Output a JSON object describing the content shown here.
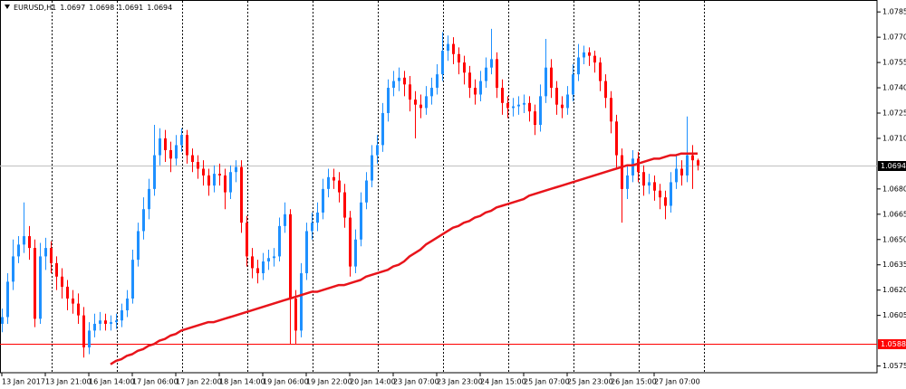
{
  "chart_data": {
    "type": "candlestick",
    "title": "EURUSD,H1",
    "categories": [
      "13 Jan 2017",
      null,
      null,
      null,
      null,
      null,
      null,
      null,
      "13 Jan 21:00",
      null,
      null,
      null,
      null,
      null,
      null,
      null,
      "16 Jan 14:00",
      null,
      null,
      null,
      null,
      null,
      null,
      null,
      "17 Jan 06:00",
      null,
      null,
      null,
      null,
      null,
      null,
      null,
      "17 Jan 22:00",
      null,
      null,
      null,
      null,
      null,
      null,
      null,
      "18 Jan 14:00",
      null,
      null,
      null,
      null,
      null,
      null,
      null,
      "19 Jan 06:00",
      null,
      null,
      null,
      null,
      null,
      null,
      null,
      "19 Jan 22:00",
      null,
      null,
      null,
      null,
      null,
      null,
      null,
      "20 Jan 14:00",
      null,
      null,
      null,
      null,
      null,
      null,
      null,
      "23 Jan 07:00",
      null,
      null,
      null,
      null,
      null,
      null,
      null,
      "23 Jan 23:00",
      null,
      null,
      null,
      null,
      null,
      null,
      null,
      "24 Jan 15:00",
      null,
      null,
      null,
      null,
      null,
      null,
      null,
      "25 Jan 07:00",
      null,
      null,
      null,
      null,
      null,
      null,
      null,
      "25 Jan 23:00",
      null,
      null,
      null,
      null,
      null,
      null,
      null,
      "26 Jan 15:00",
      null,
      null,
      null,
      null,
      null,
      null,
      null,
      "27 Jan 07:00",
      null,
      null,
      null,
      null,
      null,
      null,
      null,
      null
    ],
    "open": [
      1.06,
      1.0604,
      1.0625,
      1.064,
      1.0647,
      1.0652,
      1.0645,
      1.0603,
      1.064,
      1.0645,
      1.0636,
      1.0628,
      1.0622,
      1.0615,
      1.0612,
      1.0605,
      1.0586,
      1.0596,
      1.06,
      1.0602,
      1.06,
      1.0601,
      1.0602,
      1.0608,
      1.0615,
      1.0638,
      1.0655,
      1.0668,
      1.068,
      1.07,
      1.071,
      1.0703,
      1.0698,
      1.0706,
      1.0712,
      1.07,
      1.0696,
      1.0692,
      1.0688,
      1.0682,
      1.0689,
      1.0688,
      1.0678,
      1.069,
      1.0693,
      1.066,
      1.064,
      1.0633,
      1.063,
      1.0637,
      1.0639,
      1.064,
      1.0658,
      1.0665,
      1.0615,
      1.0596,
      1.063,
      1.0655,
      1.066,
      1.0666,
      1.068,
      1.0687,
      1.0685,
      1.0678,
      1.0663,
      1.0634,
      1.065,
      1.0672,
      1.0685,
      1.07,
      1.0706,
      1.0725,
      1.074,
      1.0744,
      1.0746,
      1.0742,
      1.0733,
      1.073,
      1.0728,
      1.0735,
      1.074,
      1.0748,
      1.0762,
      1.0766,
      1.076,
      1.0755,
      1.0749,
      1.074,
      1.0736,
      1.0744,
      1.0752,
      1.0757,
      1.074,
      1.0731,
      1.0728,
      1.0729,
      1.073,
      1.0731,
      1.0726,
      1.0718,
      1.0735,
      1.0752,
      1.074,
      1.073,
      1.0728,
      1.0736,
      1.0748,
      1.0758,
      1.0761,
      1.0759,
      1.0755,
      1.0744,
      1.0734,
      1.072,
      1.07,
      1.068,
      1.0688,
      1.0698,
      1.069,
      1.0682,
      1.0684,
      1.0679,
      1.0675,
      1.067,
      1.0684,
      1.0692,
      1.0688,
      1.07,
      1.0697
    ],
    "high": [
      1.0609,
      1.063,
      1.065,
      1.0652,
      1.0672,
      1.0658,
      1.065,
      1.0648,
      1.0651,
      1.0649,
      1.064,
      1.0633,
      1.0626,
      1.062,
      1.0618,
      1.061,
      1.0601,
      1.0606,
      1.0607,
      1.0606,
      1.0605,
      1.0606,
      1.0612,
      1.062,
      1.0644,
      1.066,
      1.0675,
      1.0686,
      1.0718,
      1.0716,
      1.0715,
      1.0708,
      1.0712,
      1.0716,
      1.0715,
      1.0704,
      1.07,
      1.0697,
      1.0692,
      1.0694,
      1.0695,
      1.0692,
      1.0694,
      1.0697,
      1.0697,
      1.0664,
      1.0645,
      1.0638,
      1.0642,
      1.0644,
      1.0645,
      1.0663,
      1.0672,
      1.0668,
      1.062,
      1.0636,
      1.066,
      1.0666,
      1.0672,
      1.0686,
      1.0692,
      1.0692,
      1.069,
      1.0683,
      1.0667,
      1.0656,
      1.0678,
      1.069,
      1.0706,
      1.0712,
      1.0731,
      1.0745,
      1.075,
      1.0752,
      1.075,
      1.0747,
      1.0738,
      1.0736,
      1.0741,
      1.0746,
      1.0754,
      1.0773,
      1.0771,
      1.077,
      1.0764,
      1.0759,
      1.0753,
      1.0745,
      1.075,
      1.0758,
      1.0775,
      1.0761,
      1.0745,
      1.0735,
      1.0734,
      1.0735,
      1.0736,
      1.0735,
      1.073,
      1.0742,
      1.0769,
      1.0757,
      1.0744,
      1.0735,
      1.0741,
      1.0754,
      1.0766,
      1.0765,
      1.0764,
      1.0762,
      1.0758,
      1.0748,
      1.0738,
      1.0724,
      1.0704,
      1.0694,
      1.0703,
      1.0702,
      1.0694,
      1.0689,
      1.0688,
      1.0683,
      1.0679,
      1.069,
      1.07,
      1.0697,
      1.0723,
      1.0706,
      1.0698
    ],
    "low": [
      1.0595,
      1.06,
      1.062,
      1.0636,
      1.0642,
      1.0638,
      1.0598,
      1.06,
      1.0632,
      1.063,
      1.062,
      1.0615,
      1.0608,
      1.0606,
      1.06,
      1.058,
      1.0582,
      1.0592,
      1.0596,
      1.0596,
      1.0596,
      1.0597,
      1.0598,
      1.0604,
      1.0612,
      1.0634,
      1.065,
      1.0662,
      1.0676,
      1.0694,
      1.0696,
      1.069,
      1.0694,
      1.0702,
      1.0695,
      1.069,
      1.0686,
      1.0682,
      1.0676,
      1.0678,
      1.0682,
      1.0668,
      1.0674,
      1.0684,
      1.0654,
      1.0634,
      1.0627,
      1.0624,
      1.0626,
      1.0632,
      1.0634,
      1.0637,
      1.0654,
      1.0588,
      1.0588,
      1.0592,
      1.0626,
      1.065,
      1.0655,
      1.0662,
      1.0675,
      1.068,
      1.0672,
      1.0657,
      1.0628,
      1.063,
      1.0646,
      1.0668,
      1.0681,
      1.0695,
      1.0702,
      1.072,
      1.0735,
      1.0738,
      1.0735,
      1.0726,
      1.071,
      1.0722,
      1.0724,
      1.073,
      1.0736,
      1.0744,
      1.0756,
      1.0754,
      1.0748,
      1.0742,
      1.0734,
      1.073,
      1.0732,
      1.074,
      1.0748,
      1.0734,
      1.0724,
      1.0722,
      1.0723,
      1.0724,
      1.0725,
      1.072,
      1.0712,
      1.0714,
      1.0731,
      1.0734,
      1.0724,
      1.0722,
      1.0724,
      1.0732,
      1.0744,
      1.0754,
      1.0753,
      1.0749,
      1.0738,
      1.0728,
      1.0713,
      1.0692,
      1.066,
      1.0674,
      1.0684,
      1.0684,
      1.0676,
      1.0677,
      1.0673,
      1.0668,
      1.0662,
      1.0666,
      1.068,
      1.0682,
      1.0684,
      1.068,
      1.0691
    ],
    "close": [
      1.0604,
      1.0625,
      1.064,
      1.0647,
      1.0652,
      1.0645,
      1.0603,
      1.064,
      1.0645,
      1.0636,
      1.0628,
      1.0622,
      1.0615,
      1.0612,
      1.0605,
      1.0586,
      1.0596,
      1.06,
      1.0602,
      1.06,
      1.0601,
      1.0602,
      1.0608,
      1.0615,
      1.0638,
      1.0655,
      1.0668,
      1.068,
      1.07,
      1.071,
      1.0703,
      1.0698,
      1.0706,
      1.0712,
      1.07,
      1.0696,
      1.0692,
      1.0688,
      1.0682,
      1.0689,
      1.0688,
      1.0678,
      1.069,
      1.0693,
      1.066,
      1.064,
      1.0633,
      1.063,
      1.0637,
      1.0639,
      1.064,
      1.0658,
      1.0665,
      1.0615,
      1.0596,
      1.063,
      1.0655,
      1.066,
      1.0666,
      1.068,
      1.0687,
      1.0685,
      1.0678,
      1.0663,
      1.0634,
      1.065,
      1.0672,
      1.0685,
      1.07,
      1.0706,
      1.0725,
      1.074,
      1.0744,
      1.0746,
      1.0742,
      1.0733,
      1.073,
      1.0728,
      1.0735,
      1.074,
      1.0748,
      1.0762,
      1.0766,
      1.076,
      1.0755,
      1.0749,
      1.074,
      1.0736,
      1.0744,
      1.0752,
      1.0757,
      1.074,
      1.0731,
      1.0728,
      1.0729,
      1.073,
      1.0731,
      1.0726,
      1.0718,
      1.0735,
      1.0752,
      1.074,
      1.073,
      1.0728,
      1.0736,
      1.0748,
      1.0758,
      1.0761,
      1.0759,
      1.0755,
      1.0744,
      1.0734,
      1.072,
      1.07,
      1.068,
      1.0688,
      1.0698,
      1.069,
      1.0682,
      1.0684,
      1.0679,
      1.0675,
      1.067,
      1.0684,
      1.0692,
      1.0688,
      1.07,
      1.0697,
      1.0694
    ],
    "up_color": "#1e90ff",
    "down_color": "#ff0000",
    "ma": {
      "color": "#e8141b",
      "values": [
        null,
        null,
        null,
        null,
        null,
        null,
        null,
        null,
        null,
        null,
        null,
        null,
        null,
        null,
        null,
        null,
        null,
        null,
        null,
        null,
        1.0576,
        1.0578,
        1.0579,
        1.0581,
        1.0582,
        1.0584,
        1.0585,
        1.0587,
        1.0588,
        1.059,
        1.0591,
        1.0593,
        1.0594,
        1.0596,
        1.0597,
        1.0598,
        1.0599,
        1.06,
        1.0601,
        1.0601,
        1.0602,
        1.0603,
        1.0604,
        1.0605,
        1.0606,
        1.0607,
        1.0608,
        1.0609,
        1.061,
        1.0611,
        1.0612,
        1.0613,
        1.0614,
        1.0615,
        1.0616,
        1.0617,
        1.0618,
        1.0619,
        1.0619,
        1.062,
        1.0621,
        1.0622,
        1.0623,
        1.0623,
        1.0624,
        1.0625,
        1.0626,
        1.0628,
        1.0629,
        1.063,
        1.0631,
        1.0632,
        1.0634,
        1.0635,
        1.0637,
        1.064,
        1.0642,
        1.0644,
        1.0647,
        1.0649,
        1.0651,
        1.0653,
        1.0655,
        1.0657,
        1.0658,
        1.066,
        1.0661,
        1.0663,
        1.0664,
        1.0666,
        1.0667,
        1.0669,
        1.067,
        1.0671,
        1.0672,
        1.0673,
        1.0674,
        1.0676,
        1.0677,
        1.0678,
        1.0679,
        1.068,
        1.0681,
        1.0682,
        1.0683,
        1.0684,
        1.0685,
        1.0686,
        1.0687,
        1.0688,
        1.0689,
        1.069,
        1.0691,
        1.0692,
        1.0693,
        1.0694,
        1.0694,
        1.0695,
        1.0696,
        1.0697,
        1.0698,
        1.0698,
        1.0699,
        1.07,
        1.07,
        1.0701,
        1.0701,
        1.0701,
        1.0701
      ]
    },
    "ylim": [
      1.0571,
      1.0791
    ],
    "yticks": [
      1.0785,
      {
        "value": 1.077,
        "label": "1.0770"
      },
      1.0755,
      {
        "value": 1.074,
        "label": "1.0740"
      },
      1.0725,
      {
        "value": 1.071,
        "label": "1.0710"
      },
      {
        "value": 1.068,
        "label": "1.0680"
      },
      1.0665,
      {
        "value": 1.065,
        "label": "1.0650"
      },
      1.0635,
      {
        "value": 1.062,
        "label": "1.0620"
      },
      1.0605,
      1.0575
    ],
    "price_lines": [
      {
        "value": 1.0694,
        "color": "#c0c0c0",
        "box": "#000000"
      },
      {
        "value": 1.0588,
        "color": "#ff0000",
        "box": "#ff0000"
      }
    ]
  }
}
